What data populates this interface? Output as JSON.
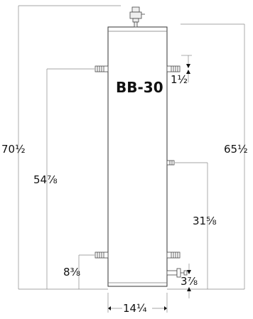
{
  "diagram": {
    "model": "BB-30",
    "dimensions": {
      "overall_height_with_vent": "70½",
      "tank_height": "65½",
      "upper_port_height": "54⅞",
      "sensor_port_height": "31⅝",
      "lower_port_height": "8⅜",
      "top_port_offset": "1½",
      "drain_offset": "3⅞",
      "tank_diameter": "14¼"
    }
  }
}
